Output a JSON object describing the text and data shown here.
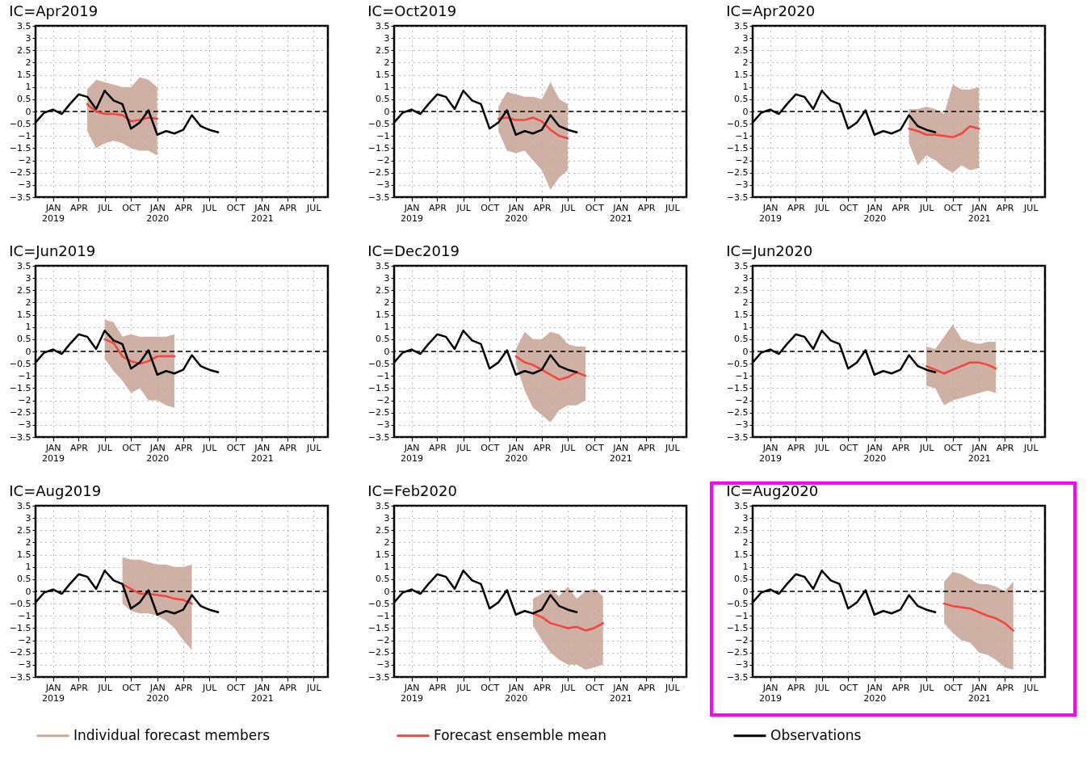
{
  "chart_data": [
    {
      "type": "line",
      "title": "IC=Apr2019",
      "xlim": [
        "2018-11",
        "2021-08-20"
      ],
      "ylim": [
        -3.5,
        3.5
      ],
      "grid": true,
      "legend": "bottom",
      "line_style": "solid",
      "xticks": [
        {
          "value": "2019-01",
          "label": "JAN 2019"
        },
        {
          "value": "2019-04",
          "label": "APR"
        },
        {
          "value": "2019-07",
          "label": "JUL"
        },
        {
          "value": "2019-10",
          "label": "OCT"
        },
        {
          "value": "2020-01",
          "label": "JAN 2020"
        },
        {
          "value": "2020-04",
          "label": "APR"
        },
        {
          "value": "2020-07",
          "label": "JUL"
        },
        {
          "value": "2020-10",
          "label": "OCT"
        },
        {
          "value": "2021-01",
          "label": "JAN 2021"
        },
        {
          "value": "2021-04",
          "label": "APR"
        },
        {
          "value": "2021-07",
          "label": "JUL"
        }
      ],
      "yticks": [
        -3.5,
        -3,
        -2.5,
        -2,
        -1.5,
        -1,
        -0.5,
        0,
        0.5,
        1,
        1.5,
        2,
        2.5,
        3,
        3.5
      ],
      "ref_lines": [
        {
          "axis": "y",
          "value": 0,
          "color": "#000000",
          "line_style": "dashed"
        }
      ],
      "series": [
        {
          "name": "Individual forecast members",
          "color": "#c9a99a"
        },
        {
          "name": "Forecast ensemble mean",
          "type": "line",
          "color": "#f4433c",
          "x": [
            "2019-05",
            "2019-06",
            "2019-07",
            "2019-08",
            "2019-09",
            "2019-10",
            "2019-11",
            "2019-12",
            "2020-01"
          ],
          "values": [
            0.3,
            0.0,
            -0.1,
            -0.1,
            -0.15,
            -0.4,
            -0.35,
            -0.25,
            -0.3
          ],
          "lower": [
            -0.8,
            -1.5,
            -1.3,
            -1.2,
            -1.3,
            -1.5,
            -1.6,
            -1.6,
            -1.8
          ],
          "upper": [
            0.9,
            1.3,
            1.2,
            1.1,
            1.0,
            1.0,
            1.4,
            1.3,
            1.0
          ]
        },
        {
          "name": "Observations",
          "type": "line",
          "color": "#000000",
          "x": [
            "2018-11",
            "2018-12",
            "2019-01",
            "2019-02",
            "2019-03",
            "2019-04",
            "2019-05",
            "2019-06",
            "2019-07",
            "2019-08",
            "2019-09",
            "2019-10",
            "2019-11",
            "2019-12",
            "2020-01",
            "2020-02",
            "2020-03",
            "2020-04",
            "2020-05",
            "2020-06",
            "2020-07",
            "2020-08"
          ],
          "values": [
            -0.45,
            -0.05,
            0.08,
            -0.1,
            0.3,
            0.7,
            0.6,
            0.1,
            0.85,
            0.45,
            0.3,
            -0.7,
            -0.45,
            0.05,
            -0.95,
            -0.8,
            -0.9,
            -0.75,
            -0.15,
            -0.6,
            -0.75,
            -0.85
          ]
        }
      ]
    },
    {
      "type": "line",
      "title": "IC=Oct2019",
      "xlim": [
        "2018-11",
        "2021-08-20"
      ],
      "ylim": [
        -3.5,
        3.5
      ],
      "grid": true,
      "legend": "bottom",
      "line_style": "solid",
      "xticks": [
        {
          "value": "2019-01",
          "label": "JAN 2019"
        },
        {
          "value": "2019-04",
          "label": "APR"
        },
        {
          "value": "2019-07",
          "label": "JUL"
        },
        {
          "value": "2019-10",
          "label": "OCT"
        },
        {
          "value": "2020-01",
          "label": "JAN 2020"
        },
        {
          "value": "2020-04",
          "label": "APR"
        },
        {
          "value": "2020-07",
          "label": "JUL"
        },
        {
          "value": "2020-10",
          "label": "OCT"
        },
        {
          "value": "2021-01",
          "label": "JAN 2021"
        },
        {
          "value": "2021-04",
          "label": "APR"
        },
        {
          "value": "2021-07",
          "label": "JUL"
        }
      ],
      "yticks": [
        -3.5,
        -3,
        -2.5,
        -2,
        -1.5,
        -1,
        -0.5,
        0,
        0.5,
        1,
        1.5,
        2,
        2.5,
        3,
        3.5
      ],
      "ref_lines": [
        {
          "axis": "y",
          "value": 0,
          "color": "#000000",
          "line_style": "dashed"
        }
      ],
      "series": [
        {
          "name": "Forecast ensemble mean",
          "type": "line",
          "color": "#f4433c",
          "x": [
            "2019-11",
            "2019-12",
            "2020-01",
            "2020-02",
            "2020-03",
            "2020-04",
            "2020-05",
            "2020-06",
            "2020-07"
          ],
          "values": [
            -0.3,
            -0.25,
            -0.35,
            -0.35,
            -0.25,
            -0.4,
            -0.75,
            -1.0,
            -1.1
          ],
          "lower": [
            -0.8,
            -1.6,
            -1.7,
            -1.6,
            -2.0,
            -2.4,
            -3.2,
            -2.7,
            -2.4
          ],
          "upper": [
            0.2,
            0.8,
            0.7,
            0.6,
            0.6,
            0.5,
            1.2,
            0.5,
            0.3
          ]
        },
        {
          "name": "Observations",
          "type": "line",
          "color": "#000000",
          "x": [
            "2018-11",
            "2018-12",
            "2019-01",
            "2019-02",
            "2019-03",
            "2019-04",
            "2019-05",
            "2019-06",
            "2019-07",
            "2019-08",
            "2019-09",
            "2019-10",
            "2019-11",
            "2019-12",
            "2020-01",
            "2020-02",
            "2020-03",
            "2020-04",
            "2020-05",
            "2020-06",
            "2020-07",
            "2020-08"
          ],
          "values": [
            -0.45,
            -0.05,
            0.08,
            -0.1,
            0.3,
            0.7,
            0.6,
            0.1,
            0.85,
            0.45,
            0.3,
            -0.7,
            -0.45,
            0.05,
            -0.95,
            -0.8,
            -0.9,
            -0.75,
            -0.15,
            -0.6,
            -0.75,
            -0.85
          ]
        }
      ]
    },
    {
      "type": "line",
      "title": "IC=Apr2020",
      "xlim": [
        "2018-11",
        "2021-08-20"
      ],
      "ylim": [
        -3.5,
        3.5
      ],
      "grid": true,
      "legend": "bottom",
      "line_style": "solid",
      "xticks": [
        {
          "value": "2019-01",
          "label": "JAN 2019"
        },
        {
          "value": "2019-04",
          "label": "APR"
        },
        {
          "value": "2019-07",
          "label": "JUL"
        },
        {
          "value": "2019-10",
          "label": "OCT"
        },
        {
          "value": "2020-01",
          "label": "JAN 2020"
        },
        {
          "value": "2020-04",
          "label": "APR"
        },
        {
          "value": "2020-07",
          "label": "JUL"
        },
        {
          "value": "2020-10",
          "label": "OCT"
        },
        {
          "value": "2021-01",
          "label": "JAN 2021"
        },
        {
          "value": "2021-04",
          "label": "APR"
        },
        {
          "value": "2021-07",
          "label": "JUL"
        }
      ],
      "yticks": [
        -3.5,
        -3,
        -2.5,
        -2,
        -1.5,
        -1,
        -0.5,
        0,
        0.5,
        1,
        1.5,
        2,
        2.5,
        3,
        3.5
      ],
      "ref_lines": [
        {
          "axis": "y",
          "value": 0,
          "color": "#000000",
          "line_style": "dashed"
        }
      ],
      "series": [
        {
          "name": "Forecast ensemble mean",
          "type": "line",
          "color": "#f4433c",
          "x": [
            "2020-05",
            "2020-06",
            "2020-07",
            "2020-08",
            "2020-09",
            "2020-10",
            "2020-11",
            "2020-12",
            "2021-01"
          ],
          "values": [
            -0.7,
            -0.8,
            -0.95,
            -0.95,
            -1.0,
            -1.05,
            -0.9,
            -0.6,
            -0.7
          ],
          "lower": [
            -1.3,
            -2.2,
            -1.8,
            -2.0,
            -2.3,
            -2.5,
            -2.2,
            -2.4,
            -2.3
          ],
          "upper": [
            0.1,
            0.1,
            0.2,
            0.1,
            -0.1,
            1.1,
            0.9,
            0.9,
            1.0
          ]
        },
        {
          "name": "Observations",
          "type": "line",
          "color": "#000000",
          "x": [
            "2018-11",
            "2018-12",
            "2019-01",
            "2019-02",
            "2019-03",
            "2019-04",
            "2019-05",
            "2019-06",
            "2019-07",
            "2019-08",
            "2019-09",
            "2019-10",
            "2019-11",
            "2019-12",
            "2020-01",
            "2020-02",
            "2020-03",
            "2020-04",
            "2020-05",
            "2020-06",
            "2020-07",
            "2020-08"
          ],
          "values": [
            -0.45,
            -0.05,
            0.08,
            -0.1,
            0.3,
            0.7,
            0.6,
            0.1,
            0.85,
            0.45,
            0.3,
            -0.7,
            -0.45,
            0.05,
            -0.95,
            -0.8,
            -0.9,
            -0.75,
            -0.15,
            -0.6,
            -0.75,
            -0.85
          ]
        }
      ]
    },
    {
      "type": "line",
      "title": "IC=Jun2019",
      "xlim": [
        "2018-11",
        "2021-08-20"
      ],
      "ylim": [
        -3.5,
        3.5
      ],
      "grid": true,
      "legend": "bottom",
      "line_style": "solid",
      "xticks": [
        {
          "value": "2019-01",
          "label": "JAN 2019"
        },
        {
          "value": "2019-04",
          "label": "APR"
        },
        {
          "value": "2019-07",
          "label": "JUL"
        },
        {
          "value": "2019-10",
          "label": "OCT"
        },
        {
          "value": "2020-01",
          "label": "JAN 2020"
        },
        {
          "value": "2020-04",
          "label": "APR"
        },
        {
          "value": "2020-07",
          "label": "JUL"
        },
        {
          "value": "2020-10",
          "label": "OCT"
        },
        {
          "value": "2021-01",
          "label": "JAN 2021"
        },
        {
          "value": "2021-04",
          "label": "APR"
        },
        {
          "value": "2021-07",
          "label": "JUL"
        }
      ],
      "yticks": [
        -3.5,
        -3,
        -2.5,
        -2,
        -1.5,
        -1,
        -0.5,
        0,
        0.5,
        1,
        1.5,
        2,
        2.5,
        3,
        3.5
      ],
      "ref_lines": [
        {
          "axis": "y",
          "value": 0,
          "color": "#000000",
          "line_style": "dashed"
        }
      ],
      "series": [
        {
          "name": "Forecast ensemble mean",
          "type": "line",
          "color": "#f4433c",
          "x": [
            "2019-07",
            "2019-08",
            "2019-09",
            "2019-10",
            "2019-11",
            "2019-12",
            "2020-01",
            "2020-02",
            "2020-03"
          ],
          "values": [
            0.5,
            0.35,
            -0.2,
            -0.4,
            -0.5,
            -0.4,
            -0.2,
            -0.2,
            -0.2
          ],
          "lower": [
            -0.3,
            -0.8,
            -1.2,
            -1.7,
            -1.5,
            -2.0,
            -2.0,
            -2.2,
            -2.3
          ],
          "upper": [
            1.3,
            1.2,
            0.6,
            0.7,
            0.6,
            0.6,
            0.6,
            0.6,
            0.7
          ]
        },
        {
          "name": "Observations",
          "type": "line",
          "color": "#000000",
          "x": [
            "2018-11",
            "2018-12",
            "2019-01",
            "2019-02",
            "2019-03",
            "2019-04",
            "2019-05",
            "2019-06",
            "2019-07",
            "2019-08",
            "2019-09",
            "2019-10",
            "2019-11",
            "2019-12",
            "2020-01",
            "2020-02",
            "2020-03",
            "2020-04",
            "2020-05",
            "2020-06",
            "2020-07",
            "2020-08"
          ],
          "values": [
            -0.45,
            -0.05,
            0.08,
            -0.1,
            0.3,
            0.7,
            0.6,
            0.1,
            0.85,
            0.45,
            0.3,
            -0.7,
            -0.45,
            0.05,
            -0.95,
            -0.8,
            -0.9,
            -0.75,
            -0.15,
            -0.6,
            -0.75,
            -0.85
          ]
        }
      ]
    },
    {
      "type": "line",
      "title": "IC=Dec2019",
      "xlim": [
        "2018-11",
        "2021-08-20"
      ],
      "ylim": [
        -3.5,
        3.5
      ],
      "grid": true,
      "legend": "bottom",
      "line_style": "solid",
      "xticks": [
        {
          "value": "2019-01",
          "label": "JAN 2019"
        },
        {
          "value": "2019-04",
          "label": "APR"
        },
        {
          "value": "2019-07",
          "label": "JUL"
        },
        {
          "value": "2019-10",
          "label": "OCT"
        },
        {
          "value": "2020-01",
          "label": "JAN 2020"
        },
        {
          "value": "2020-04",
          "label": "APR"
        },
        {
          "value": "2020-07",
          "label": "JUL"
        },
        {
          "value": "2020-10",
          "label": "OCT"
        },
        {
          "value": "2021-01",
          "label": "JAN 2021"
        },
        {
          "value": "2021-04",
          "label": "APR"
        },
        {
          "value": "2021-07",
          "label": "JUL"
        }
      ],
      "yticks": [
        -3.5,
        -3,
        -2.5,
        -2,
        -1.5,
        -1,
        -0.5,
        0,
        0.5,
        1,
        1.5,
        2,
        2.5,
        3,
        3.5
      ],
      "ref_lines": [
        {
          "axis": "y",
          "value": 0,
          "color": "#000000",
          "line_style": "dashed"
        }
      ],
      "series": [
        {
          "name": "Forecast ensemble mean",
          "type": "line",
          "color": "#f4433c",
          "x": [
            "2020-01",
            "2020-02",
            "2020-03",
            "2020-04",
            "2020-05",
            "2020-06",
            "2020-07",
            "2020-08",
            "2020-09"
          ],
          "values": [
            -0.2,
            -0.45,
            -0.55,
            -0.75,
            -0.95,
            -1.15,
            -1.05,
            -0.85,
            -1.0
          ],
          "lower": [
            -0.5,
            -1.6,
            -2.3,
            -2.6,
            -2.9,
            -2.4,
            -2.2,
            -2.2,
            -2.0
          ],
          "upper": [
            0.1,
            0.8,
            0.5,
            0.5,
            0.8,
            0.7,
            0.3,
            0.2,
            0.2
          ]
        },
        {
          "name": "Observations",
          "type": "line",
          "color": "#000000",
          "x": [
            "2018-11",
            "2018-12",
            "2019-01",
            "2019-02",
            "2019-03",
            "2019-04",
            "2019-05",
            "2019-06",
            "2019-07",
            "2019-08",
            "2019-09",
            "2019-10",
            "2019-11",
            "2019-12",
            "2020-01",
            "2020-02",
            "2020-03",
            "2020-04",
            "2020-05",
            "2020-06",
            "2020-07",
            "2020-08"
          ],
          "values": [
            -0.45,
            -0.05,
            0.08,
            -0.1,
            0.3,
            0.7,
            0.6,
            0.1,
            0.85,
            0.45,
            0.3,
            -0.7,
            -0.45,
            0.05,
            -0.95,
            -0.8,
            -0.9,
            -0.75,
            -0.15,
            -0.6,
            -0.75,
            -0.85
          ]
        }
      ]
    },
    {
      "type": "line",
      "title": "IC=Jun2020",
      "xlim": [
        "2018-11",
        "2021-08-20"
      ],
      "ylim": [
        -3.5,
        3.5
      ],
      "grid": true,
      "legend": "bottom",
      "line_style": "solid",
      "xticks": [
        {
          "value": "2019-01",
          "label": "JAN 2019"
        },
        {
          "value": "2019-04",
          "label": "APR"
        },
        {
          "value": "2019-07",
          "label": "JUL"
        },
        {
          "value": "2019-10",
          "label": "OCT"
        },
        {
          "value": "2020-01",
          "label": "JAN 2020"
        },
        {
          "value": "2020-04",
          "label": "APR"
        },
        {
          "value": "2020-07",
          "label": "JUL"
        },
        {
          "value": "2020-10",
          "label": "OCT"
        },
        {
          "value": "2021-01",
          "label": "JAN 2021"
        },
        {
          "value": "2021-04",
          "label": "APR"
        },
        {
          "value": "2021-07",
          "label": "JUL"
        }
      ],
      "yticks": [
        -3.5,
        -3,
        -2.5,
        -2,
        -1.5,
        -1,
        -0.5,
        0,
        0.5,
        1,
        1.5,
        2,
        2.5,
        3,
        3.5
      ],
      "ref_lines": [
        {
          "axis": "y",
          "value": 0,
          "color": "#000000",
          "line_style": "dashed"
        }
      ],
      "series": [
        {
          "name": "Forecast ensemble mean",
          "type": "line",
          "color": "#f4433c",
          "x": [
            "2020-07",
            "2020-08",
            "2020-09",
            "2020-10",
            "2020-11",
            "2020-12",
            "2021-01",
            "2021-02",
            "2021-03"
          ],
          "values": [
            -0.6,
            -0.75,
            -0.9,
            -0.75,
            -0.6,
            -0.45,
            -0.45,
            -0.55,
            -0.7
          ],
          "lower": [
            -1.4,
            -1.5,
            -2.2,
            -2.0,
            -1.9,
            -1.8,
            -1.7,
            -1.6,
            -1.7
          ],
          "upper": [
            0.2,
            0.1,
            0.6,
            1.1,
            0.5,
            0.4,
            0.3,
            0.4,
            0.4
          ]
        },
        {
          "name": "Observations",
          "type": "line",
          "color": "#000000",
          "x": [
            "2018-11",
            "2018-12",
            "2019-01",
            "2019-02",
            "2019-03",
            "2019-04",
            "2019-05",
            "2019-06",
            "2019-07",
            "2019-08",
            "2019-09",
            "2019-10",
            "2019-11",
            "2019-12",
            "2020-01",
            "2020-02",
            "2020-03",
            "2020-04",
            "2020-05",
            "2020-06",
            "2020-07",
            "2020-08"
          ],
          "values": [
            -0.45,
            -0.05,
            0.08,
            -0.1,
            0.3,
            0.7,
            0.6,
            0.1,
            0.85,
            0.45,
            0.3,
            -0.7,
            -0.45,
            0.05,
            -0.95,
            -0.8,
            -0.9,
            -0.75,
            -0.15,
            -0.6,
            -0.75,
            -0.85
          ]
        }
      ]
    },
    {
      "type": "line",
      "title": "IC=Aug2019",
      "xlim": [
        "2018-11",
        "2021-08-20"
      ],
      "ylim": [
        -3.5,
        3.5
      ],
      "grid": true,
      "legend": "bottom",
      "line_style": "solid",
      "xticks": [
        {
          "value": "2019-01",
          "label": "JAN 2019"
        },
        {
          "value": "2019-04",
          "label": "APR"
        },
        {
          "value": "2019-07",
          "label": "JUL"
        },
        {
          "value": "2019-10",
          "label": "OCT"
        },
        {
          "value": "2020-01",
          "label": "JAN 2020"
        },
        {
          "value": "2020-04",
          "label": "APR"
        },
        {
          "value": "2020-07",
          "label": "JUL"
        },
        {
          "value": "2020-10",
          "label": "OCT"
        },
        {
          "value": "2021-01",
          "label": "JAN 2021"
        },
        {
          "value": "2021-04",
          "label": "APR"
        },
        {
          "value": "2021-07",
          "label": "JUL"
        }
      ],
      "yticks": [
        -3.5,
        -3,
        -2.5,
        -2,
        -1.5,
        -1,
        -0.5,
        0,
        0.5,
        1,
        1.5,
        2,
        2.5,
        3,
        3.5
      ],
      "ref_lines": [
        {
          "axis": "y",
          "value": 0,
          "color": "#000000",
          "line_style": "dashed"
        }
      ],
      "series": [
        {
          "name": "Forecast ensemble mean",
          "type": "line",
          "color": "#f4433c",
          "x": [
            "2019-09",
            "2019-10",
            "2019-11",
            "2019-12",
            "2020-01",
            "2020-02",
            "2020-03",
            "2020-04",
            "2020-05"
          ],
          "values": [
            0.3,
            0.1,
            -0.1,
            -0.1,
            -0.15,
            -0.2,
            -0.3,
            -0.35,
            -0.5
          ],
          "lower": [
            -0.5,
            -0.8,
            -0.9,
            -0.9,
            -1.0,
            -1.2,
            -1.5,
            -2.0,
            -2.4
          ],
          "upper": [
            1.4,
            1.3,
            1.3,
            1.2,
            1.1,
            1.1,
            1.0,
            1.0,
            1.1
          ]
        },
        {
          "name": "Observations",
          "type": "line",
          "color": "#000000",
          "x": [
            "2018-11",
            "2018-12",
            "2019-01",
            "2019-02",
            "2019-03",
            "2019-04",
            "2019-05",
            "2019-06",
            "2019-07",
            "2019-08",
            "2019-09",
            "2019-10",
            "2019-11",
            "2019-12",
            "2020-01",
            "2020-02",
            "2020-03",
            "2020-04",
            "2020-05",
            "2020-06",
            "2020-07",
            "2020-08"
          ],
          "values": [
            -0.45,
            -0.05,
            0.08,
            -0.1,
            0.3,
            0.7,
            0.6,
            0.1,
            0.85,
            0.45,
            0.3,
            -0.7,
            -0.45,
            0.05,
            -0.95,
            -0.8,
            -0.9,
            -0.75,
            -0.15,
            -0.6,
            -0.75,
            -0.85
          ]
        }
      ]
    },
    {
      "type": "line",
      "title": "IC=Feb2020",
      "xlim": [
        "2018-11",
        "2021-08-20"
      ],
      "ylim": [
        -3.5,
        3.5
      ],
      "grid": true,
      "legend": "bottom",
      "line_style": "solid",
      "xticks": [
        {
          "value": "2019-01",
          "label": "JAN 2019"
        },
        {
          "value": "2019-04",
          "label": "APR"
        },
        {
          "value": "2019-07",
          "label": "JUL"
        },
        {
          "value": "2019-10",
          "label": "OCT"
        },
        {
          "value": "2020-01",
          "label": "JAN 2020"
        },
        {
          "value": "2020-04",
          "label": "APR"
        },
        {
          "value": "2020-07",
          "label": "JUL"
        },
        {
          "value": "2020-10",
          "label": "OCT"
        },
        {
          "value": "2021-01",
          "label": "JAN 2021"
        },
        {
          "value": "2021-04",
          "label": "APR"
        },
        {
          "value": "2021-07",
          "label": "JUL"
        }
      ],
      "yticks": [
        -3.5,
        -3,
        -2.5,
        -2,
        -1.5,
        -1,
        -0.5,
        0,
        0.5,
        1,
        1.5,
        2,
        2.5,
        3,
        3.5
      ],
      "ref_lines": [
        {
          "axis": "y",
          "value": 0,
          "color": "#000000",
          "line_style": "dashed"
        }
      ],
      "series": [
        {
          "name": "Forecast ensemble mean",
          "type": "line",
          "color": "#f4433c",
          "x": [
            "2020-03",
            "2020-04",
            "2020-05",
            "2020-06",
            "2020-07",
            "2020-08",
            "2020-09",
            "2020-10",
            "2020-11"
          ],
          "values": [
            -0.9,
            -1.05,
            -1.3,
            -1.4,
            -1.5,
            -1.45,
            -1.6,
            -1.5,
            -1.3
          ],
          "lower": [
            -1.4,
            -2.0,
            -2.5,
            -2.8,
            -3.0,
            -3.0,
            -3.2,
            -3.1,
            -3.0
          ],
          "upper": [
            -0.3,
            -0.1,
            0.1,
            -0.2,
            0.2,
            -0.3,
            0.0,
            0.1,
            -0.2
          ]
        },
        {
          "name": "Observations",
          "type": "line",
          "color": "#000000",
          "x": [
            "2018-11",
            "2018-12",
            "2019-01",
            "2019-02",
            "2019-03",
            "2019-04",
            "2019-05",
            "2019-06",
            "2019-07",
            "2019-08",
            "2019-09",
            "2019-10",
            "2019-11",
            "2019-12",
            "2020-01",
            "2020-02",
            "2020-03",
            "2020-04",
            "2020-05",
            "2020-06",
            "2020-07",
            "2020-08"
          ],
          "values": [
            -0.45,
            -0.05,
            0.08,
            -0.1,
            0.3,
            0.7,
            0.6,
            0.1,
            0.85,
            0.45,
            0.3,
            -0.7,
            -0.45,
            0.05,
            -0.95,
            -0.8,
            -0.9,
            -0.75,
            -0.15,
            -0.6,
            -0.75,
            -0.85
          ]
        }
      ]
    },
    {
      "type": "line",
      "title": "IC=Aug2020",
      "xlim": [
        "2018-11",
        "2021-08-20"
      ],
      "ylim": [
        -3.5,
        3.5
      ],
      "grid": true,
      "legend": "bottom",
      "line_style": "solid",
      "xticks": [
        {
          "value": "2019-01",
          "label": "JAN 2019"
        },
        {
          "value": "2019-04",
          "label": "APR"
        },
        {
          "value": "2019-07",
          "label": "JUL"
        },
        {
          "value": "2019-10",
          "label": "OCT"
        },
        {
          "value": "2020-01",
          "label": "JAN 2020"
        },
        {
          "value": "2020-04",
          "label": "APR"
        },
        {
          "value": "2020-07",
          "label": "JUL"
        },
        {
          "value": "2020-10",
          "label": "OCT"
        },
        {
          "value": "2021-01",
          "label": "JAN 2021"
        },
        {
          "value": "2021-04",
          "label": "APR"
        },
        {
          "value": "2021-07",
          "label": "JUL"
        }
      ],
      "yticks": [
        -3.5,
        -3,
        -2.5,
        -2,
        -1.5,
        -1,
        -0.5,
        0,
        0.5,
        1,
        1.5,
        2,
        2.5,
        3,
        3.5
      ],
      "ref_lines": [
        {
          "axis": "y",
          "value": 0,
          "color": "#000000",
          "line_style": "dashed"
        }
      ],
      "series": [
        {
          "name": "Forecast ensemble mean",
          "type": "line",
          "color": "#f4433c",
          "x": [
            "2020-09",
            "2020-10",
            "2020-11",
            "2020-12",
            "2021-01",
            "2021-02",
            "2021-03",
            "2021-04",
            "2021-05"
          ],
          "values": [
            -0.5,
            -0.6,
            -0.65,
            -0.7,
            -0.85,
            -1.0,
            -1.1,
            -1.3,
            -1.6
          ],
          "lower": [
            -1.3,
            -1.7,
            -2.0,
            -2.1,
            -2.5,
            -2.6,
            -2.8,
            -3.1,
            -3.2
          ],
          "upper": [
            0.4,
            0.8,
            0.7,
            0.5,
            0.3,
            0.3,
            0.2,
            0.0,
            0.4
          ]
        },
        {
          "name": "Observations",
          "type": "line",
          "color": "#000000",
          "x": [
            "2018-11",
            "2018-12",
            "2019-01",
            "2019-02",
            "2019-03",
            "2019-04",
            "2019-05",
            "2019-06",
            "2019-07",
            "2019-08",
            "2019-09",
            "2019-10",
            "2019-11",
            "2019-12",
            "2020-01",
            "2020-02",
            "2020-03",
            "2020-04",
            "2020-05",
            "2020-06",
            "2020-07",
            "2020-08"
          ],
          "values": [
            -0.45,
            -0.05,
            0.08,
            -0.1,
            0.3,
            0.7,
            0.6,
            0.1,
            0.85,
            0.45,
            0.3,
            -0.7,
            -0.45,
            0.05,
            -0.95,
            -0.8,
            -0.9,
            -0.75,
            -0.15,
            -0.6,
            -0.75,
            -0.85
          ]
        }
      ]
    }
  ]
}
